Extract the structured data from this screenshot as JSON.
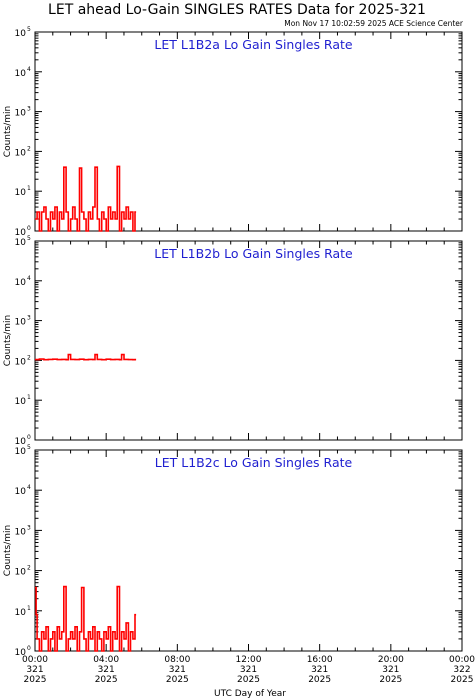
{
  "header": {
    "title": "LET ahead Lo-Gain SINGLES RATES Data for 2025-321",
    "timestamp": "Mon Nov 17 10:02:59 2025 ACE Science Center"
  },
  "axes": {
    "ylabel": "Counts/min",
    "xlabel": "UTC Day of Year",
    "y_ticks": [
      {
        "base": "10",
        "exp": "0",
        "value": 1
      },
      {
        "base": "10",
        "exp": "1",
        "value": 10
      },
      {
        "base": "10",
        "exp": "2",
        "value": 100
      },
      {
        "base": "10",
        "exp": "3",
        "value": 1000
      },
      {
        "base": "10",
        "exp": "4",
        "value": 10000
      },
      {
        "base": "10",
        "exp": "5",
        "value": 100000
      }
    ],
    "x_ticks": [
      {
        "hour": 0,
        "time": "00:00",
        "doy": "321",
        "year": "2025"
      },
      {
        "hour": 4,
        "time": "04:00",
        "doy": "321",
        "year": "2025"
      },
      {
        "hour": 8,
        "time": "08:00",
        "doy": "321",
        "year": "2025"
      },
      {
        "hour": 12,
        "time": "12:00",
        "doy": "321",
        "year": "2025"
      },
      {
        "hour": 16,
        "time": "16:00",
        "doy": "321",
        "year": "2025"
      },
      {
        "hour": 20,
        "time": "20:00",
        "doy": "321",
        "year": "2025"
      },
      {
        "hour": 24,
        "time": "00:00",
        "doy": "322",
        "year": "2025"
      }
    ]
  },
  "colors": {
    "series": "#ff0000",
    "panel_title": "#1f1fd0",
    "axes": "#000000"
  },
  "chart_data": [
    {
      "type": "line",
      "title": "LET L1B2a Lo Gain Singles Rate",
      "ylabel": "Counts/min",
      "xlabel": "",
      "ylog": true,
      "ylim": [
        1,
        100000
      ],
      "xlim": [
        0,
        24
      ],
      "x_unit": "hours",
      "series": [
        {
          "x": [
            0.0,
            0.12,
            0.25,
            0.37,
            0.5,
            0.62,
            0.75,
            0.87,
            1.0,
            1.12,
            1.25,
            1.37,
            1.5,
            1.62,
            1.75,
            1.87,
            2.0,
            2.12,
            2.25,
            2.37,
            2.5,
            2.62,
            2.75,
            2.87,
            3.0,
            3.12,
            3.25,
            3.37,
            3.5,
            3.62,
            3.75,
            3.87,
            4.0,
            4.12,
            4.25,
            4.37,
            4.5,
            4.62,
            4.75,
            4.87,
            5.0,
            5.12,
            5.25,
            5.37,
            5.5,
            5.62
          ],
          "y": [
            2,
            3,
            1,
            3,
            4,
            2,
            1,
            3,
            2,
            4,
            1,
            3,
            2,
            40,
            3,
            1,
            2,
            4,
            2,
            1,
            38,
            3,
            2,
            1,
            3,
            2,
            4,
            40,
            2,
            1,
            3,
            2,
            1,
            4,
            2,
            3,
            2,
            42,
            1,
            3,
            2,
            4,
            2,
            3,
            1,
            3
          ]
        }
      ]
    },
    {
      "type": "line",
      "title": "LET L1B2b Lo Gain Singles Rate",
      "ylabel": "Counts/min",
      "xlabel": "",
      "ylog": true,
      "ylim": [
        1,
        100000
      ],
      "xlim": [
        0,
        24
      ],
      "x_unit": "hours",
      "series": [
        {
          "x": [
            0.0,
            0.25,
            0.5,
            0.75,
            1.0,
            1.25,
            1.5,
            1.75,
            1.87,
            2.0,
            2.25,
            2.5,
            2.75,
            3.0,
            3.25,
            3.37,
            3.5,
            3.75,
            4.0,
            4.25,
            4.5,
            4.75,
            4.87,
            5.0,
            5.25,
            5.5,
            5.62
          ],
          "y": [
            105,
            108,
            104,
            106,
            107,
            105,
            106,
            104,
            140,
            106,
            105,
            107,
            104,
            106,
            105,
            140,
            106,
            104,
            107,
            105,
            106,
            104,
            140,
            106,
            105,
            104,
            105
          ]
        }
      ]
    },
    {
      "type": "line",
      "title": "LET L1B2c Lo Gain Singles Rate",
      "ylabel": "Counts/min",
      "xlabel": "",
      "ylog": true,
      "ylim": [
        1,
        100000
      ],
      "xlim": [
        0,
        24
      ],
      "x_unit": "hours",
      "series": [
        {
          "x": [
            0.0,
            0.06,
            0.12,
            0.25,
            0.37,
            0.5,
            0.62,
            0.75,
            0.87,
            1.0,
            1.12,
            1.25,
            1.37,
            1.5,
            1.62,
            1.75,
            1.87,
            2.0,
            2.12,
            2.25,
            2.37,
            2.5,
            2.62,
            2.75,
            2.87,
            3.0,
            3.12,
            3.25,
            3.37,
            3.5,
            3.62,
            3.75,
            3.87,
            4.0,
            4.12,
            4.25,
            4.37,
            4.5,
            4.62,
            4.75,
            4.87,
            5.0,
            5.12,
            5.25,
            5.37,
            5.5,
            5.62
          ],
          "y": [
            38,
            8,
            2,
            1,
            3,
            2,
            4,
            1,
            2,
            3,
            1,
            4,
            2,
            3,
            40,
            1,
            2,
            3,
            2,
            4,
            1,
            3,
            38,
            2,
            1,
            3,
            2,
            4,
            1,
            3,
            2,
            1,
            3,
            2,
            4,
            1,
            3,
            2,
            40,
            1,
            3,
            2,
            5,
            1,
            3,
            2,
            8
          ]
        }
      ]
    }
  ]
}
